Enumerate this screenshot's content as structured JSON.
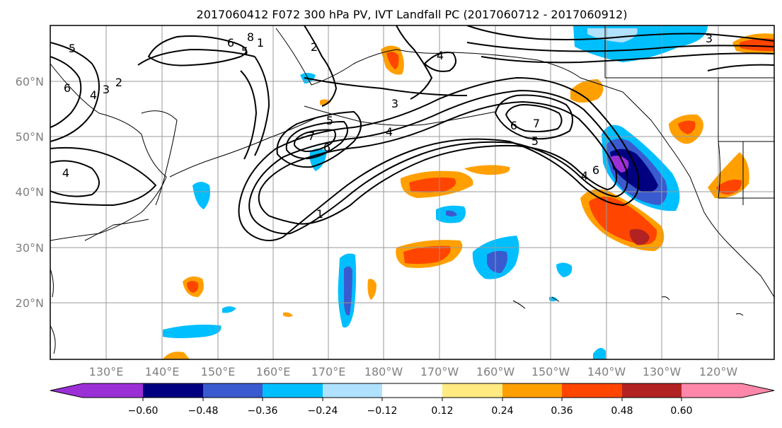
{
  "title": "2017060412 F072 300 hPa PV, IVT Landfall PC (2017060712 - 2017060912)",
  "map": {
    "lat_labels": [
      "60°N",
      "50°N",
      "40°N",
      "30°N",
      "20°N"
    ],
    "lon_labels": [
      "130°E",
      "140°E",
      "150°E",
      "160°E",
      "170°E",
      "180°W",
      "170°W",
      "160°W",
      "150°W",
      "140°W",
      "130°W",
      "120°W"
    ],
    "contour_labels": [
      "5",
      "6",
      "4",
      "3",
      "2",
      "8",
      "1",
      "6",
      "5",
      "2",
      "4",
      "3",
      "5",
      "7",
      "6",
      "4",
      "3",
      "1",
      "6",
      "7",
      "5",
      "6",
      "4",
      "4"
    ]
  },
  "colorbar": {
    "tick_labels": [
      "−0.60",
      "−0.48",
      "−0.36",
      "−0.24",
      "−0.12",
      "0.12",
      "0.24",
      "0.36",
      "0.48",
      "0.60"
    ],
    "colors": {
      "below_min": "#9b30d6",
      "b1": "#000080",
      "b2": "#3a5bcf",
      "b3": "#00bfff",
      "b4": "#b0e2ff",
      "b5": "#ffffff",
      "b6": "#ffeb82",
      "b7": "#ffa000",
      "b8": "#ff4500",
      "b9": "#b22222",
      "above_max": "#ff88aa"
    }
  }
}
